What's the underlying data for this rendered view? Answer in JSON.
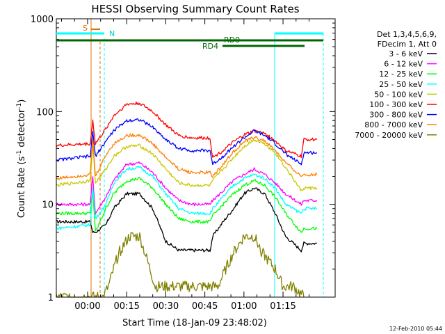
{
  "chart_data": {
    "type": "line",
    "title": "HESSI Observing Summary Count Rates",
    "xlabel": "Start Time (18-Jan-09 23:48:02)",
    "ylabel_main": "Count Rate (s",
    "ylabel_sup1": "-1",
    "ylabel_mid": " detector",
    "ylabel_sup2": "-1",
    "ylabel_end": ")",
    "yscale": "log",
    "ylim": [
      1,
      1000
    ],
    "xlim_minutes": [
      -12,
      95
    ],
    "x_ticks": [
      {
        "minute": 0,
        "label": "00:00"
      },
      {
        "minute": 15,
        "label": "00:15"
      },
      {
        "minute": 30,
        "label": "00:30"
      },
      {
        "minute": 45,
        "label": "00:45"
      },
      {
        "minute": 60,
        "label": "01:00"
      },
      {
        "minute": 75,
        "label": "01:15"
      }
    ],
    "y_ticks": [
      {
        "value": 1,
        "label": "1"
      },
      {
        "value": 10,
        "label": "10"
      },
      {
        "value": 100,
        "label": "100"
      },
      {
        "value": 1000,
        "label": "1000"
      }
    ],
    "legend": {
      "position": "right",
      "header1": "Det 1,3,4,5,6,9,",
      "header2": "FDecim 1, Att 0"
    },
    "flag_labels": {
      "saa": "S",
      "night": "N",
      "rd0": "RD0",
      "rd4": "RD4"
    },
    "flag_colors": {
      "saa": "#e07000",
      "night": "#00ffff",
      "decim": "#006400"
    },
    "series": [
      {
        "name": "3 - 6 keV",
        "color": "#000000",
        "x": [
          -12,
          1,
          2,
          3,
          7,
          10,
          15,
          20,
          25,
          30,
          35,
          40,
          47,
          48,
          52,
          56,
          60,
          64,
          68,
          72,
          76,
          82,
          83,
          88
        ],
        "y": [
          6.5,
          6.5,
          5,
          5,
          6,
          9,
          13,
          13,
          9,
          4,
          3.2,
          3.2,
          3.2,
          4.5,
          6.5,
          9,
          13,
          15,
          13,
          8,
          4.5,
          3.2,
          3.8,
          3.8
        ]
      },
      {
        "name": "6 - 12 keV",
        "color": "#ff00ff",
        "x": [
          -12,
          1,
          2,
          3,
          7,
          10,
          15,
          20,
          25,
          30,
          35,
          40,
          47,
          48,
          52,
          56,
          60,
          64,
          68,
          72,
          76,
          82,
          83,
          88
        ],
        "y": [
          10,
          10,
          20,
          8,
          12,
          18,
          27,
          28,
          22,
          15,
          11,
          10,
          10,
          11,
          14,
          18,
          21,
          24,
          21,
          17,
          13,
          10,
          11,
          11
        ]
      },
      {
        "name": "12 - 25 keV",
        "color": "#00ff00",
        "x": [
          -12,
          1,
          2,
          3,
          7,
          10,
          15,
          20,
          25,
          30,
          35,
          40,
          47,
          48,
          52,
          56,
          60,
          64,
          68,
          72,
          76,
          82,
          83,
          88
        ],
        "y": [
          8,
          8,
          14,
          5,
          9,
          13,
          18,
          19,
          15,
          10,
          7,
          6.5,
          6.5,
          7.5,
          10,
          13,
          16,
          18,
          16,
          12,
          8,
          5,
          5.5,
          5.5
        ]
      },
      {
        "name": "25 - 50 keV",
        "color": "#00ffff",
        "x": [
          -12,
          1,
          2,
          3,
          7,
          10,
          15,
          20,
          25,
          30,
          35,
          40,
          47,
          48,
          52,
          56,
          60,
          64,
          68,
          72,
          76,
          82,
          83,
          88
        ],
        "y": [
          5.5,
          6,
          15,
          7,
          10,
          17,
          24,
          25,
          20,
          13,
          9,
          8,
          8,
          9,
          12,
          16,
          19,
          21,
          19,
          15,
          10,
          8,
          9,
          9
        ]
      },
      {
        "name": "50 - 100 keV",
        "color": "#c8c800",
        "x": [
          -12,
          1,
          2,
          3,
          7,
          10,
          15,
          20,
          25,
          30,
          35,
          40,
          47,
          48,
          52,
          56,
          60,
          64,
          68,
          72,
          76,
          82,
          83,
          88
        ],
        "y": [
          16,
          18,
          45,
          17,
          24,
          33,
          42,
          43,
          35,
          24,
          17,
          16,
          16,
          18,
          24,
          32,
          42,
          50,
          45,
          36,
          25,
          14,
          15,
          15
        ]
      },
      {
        "name": "100 - 300 keV",
        "color": "#ff0000",
        "x": [
          -12,
          1,
          2,
          3,
          7,
          10,
          15,
          20,
          25,
          30,
          35,
          40,
          47,
          48,
          52,
          56,
          60,
          64,
          68,
          72,
          76,
          82,
          83,
          88
        ],
        "y": [
          43,
          45,
          80,
          45,
          65,
          90,
          120,
          123,
          100,
          72,
          55,
          52,
          52,
          32,
          38,
          47,
          56,
          62,
          58,
          48,
          38,
          33,
          50,
          50
        ]
      },
      {
        "name": "300 - 800 keV",
        "color": "#0000ff",
        "x": [
          -12,
          1,
          2,
          3,
          7,
          10,
          15,
          20,
          25,
          30,
          35,
          40,
          47,
          48,
          52,
          56,
          60,
          64,
          68,
          72,
          76,
          82,
          83,
          88
        ],
        "y": [
          30,
          33,
          60,
          33,
          48,
          62,
          80,
          82,
          68,
          50,
          40,
          38,
          38,
          27,
          33,
          42,
          52,
          62,
          55,
          45,
          35,
          27,
          36,
          36
        ]
      },
      {
        "name": "800 - 7000 keV",
        "color": "#ff8000",
        "x": [
          -12,
          1,
          2,
          3,
          7,
          10,
          15,
          20,
          25,
          30,
          35,
          40,
          47,
          48,
          52,
          56,
          60,
          64,
          68,
          72,
          76,
          82,
          83,
          88
        ],
        "y": [
          19,
          21,
          50,
          20,
          34,
          45,
          55,
          56,
          45,
          32,
          24,
          22,
          22,
          20,
          27,
          37,
          47,
          53,
          48,
          38,
          28,
          20,
          21,
          21
        ]
      },
      {
        "name": "7000 - 20000 keV",
        "color": "#808000",
        "x": [
          -12,
          1,
          3.5,
          6,
          8,
          10,
          12,
          16,
          20,
          22,
          26,
          50,
          53,
          56,
          60,
          64,
          67,
          72,
          75,
          79,
          83
        ],
        "y": [
          1,
          1,
          1,
          1,
          1.3,
          2,
          3,
          4.5,
          4.5,
          3,
          1.3,
          1.3,
          2,
          3,
          4.5,
          4.5,
          3,
          2,
          1.3,
          1.3,
          1
        ]
      }
    ]
  },
  "footer": {
    "timestamp": "12-Feb-2010 05:44"
  }
}
